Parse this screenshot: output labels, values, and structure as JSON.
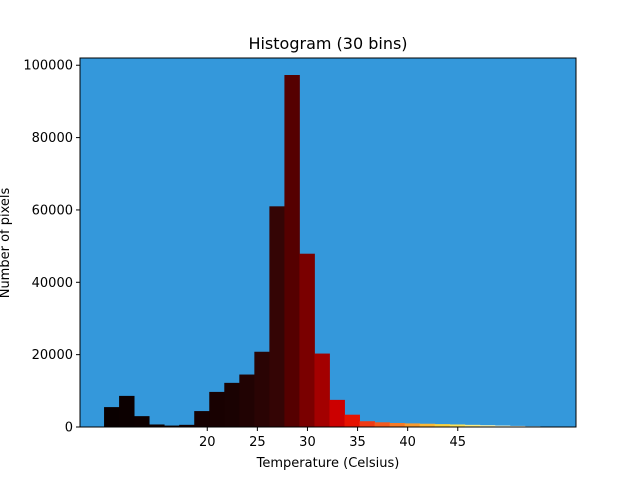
{
  "chart_data": {
    "type": "bar",
    "title": "Histogram (30 bins)",
    "xlabel": "Temperature (Celsius)",
    "ylabel": "Number of pixels",
    "xlim": [
      7.3,
      56.8
    ],
    "ylim": [
      0,
      102000
    ],
    "x_ticks": [
      20,
      25,
      30,
      35,
      40,
      45
    ],
    "y_ticks": [
      0,
      20000,
      40000,
      60000,
      80000,
      100000
    ],
    "x_tick_labels": [
      "20",
      "25",
      "30",
      "35",
      "40",
      "45"
    ],
    "y_tick_labels": [
      "0",
      "20000",
      "40000",
      "60000",
      "80000",
      "100000"
    ],
    "grid": false,
    "plot_background": "#3498db",
    "bin_width": 1.5,
    "bin_starts": [
      9.7,
      11.2,
      12.7,
      14.2,
      15.7,
      17.2,
      18.7,
      20.2,
      21.7,
      23.2,
      24.7,
      26.2,
      27.7,
      29.2,
      30.7,
      32.2,
      33.7,
      35.2,
      36.7,
      38.2,
      39.7,
      41.2,
      42.7,
      44.2,
      45.7,
      47.2,
      48.7,
      50.2,
      51.7,
      53.2
    ],
    "values": [
      5500,
      8600,
      3000,
      700,
      400,
      600,
      4400,
      9700,
      12200,
      14500,
      20800,
      61000,
      97300,
      47900,
      20300,
      7500,
      3400,
      1600,
      1300,
      1100,
      1000,
      900,
      800,
      700,
      600,
      500,
      400,
      300,
      200,
      100
    ],
    "colors": [
      "#0a0000",
      "#0c0000",
      "#0e0000",
      "#100000",
      "#120101",
      "#140101",
      "#160101",
      "#180101",
      "#1a0202",
      "#210303",
      "#2a0404",
      "#340505",
      "#550000",
      "#7a0000",
      "#a30000",
      "#cc0000",
      "#e61200",
      "#f03a14",
      "#f45a1e",
      "#f77a26",
      "#f99a2e",
      "#fbb836",
      "#fcd23e",
      "#fde35a",
      "#fdee86",
      "#fef5b0",
      "#fefad2",
      "#fffce6",
      "#fffef2",
      "#ffffff"
    ]
  }
}
